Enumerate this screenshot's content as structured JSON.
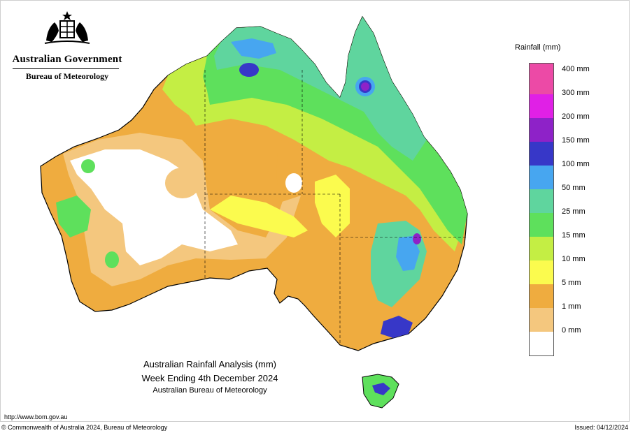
{
  "header": {
    "agency_primary": "Australian Government",
    "agency_secondary": "Bureau of Meteorology",
    "emblem_icon": "coat-of-arms-icon"
  },
  "map": {
    "title_line1": "Australian Rainfall Analysis (mm)",
    "title_line2": "Week Ending 4th December 2024",
    "title_line3": "Australian Bureau of Meteorology",
    "url": "http://www.bom.gov.au"
  },
  "legend": {
    "title": "Rainfall (mm)",
    "bins": [
      {
        "label": "400 mm",
        "color": "#ec4aa6"
      },
      {
        "label": "300 mm",
        "color": "#e020e6"
      },
      {
        "label": "200 mm",
        "color": "#8e22c8"
      },
      {
        "label": "150 mm",
        "color": "#3737c8"
      },
      {
        "label": "100 mm",
        "color": "#47a6f0"
      },
      {
        "label": "50 mm",
        "color": "#5fd59e"
      },
      {
        "label": "25 mm",
        "color": "#5ee05c"
      },
      {
        "label": "15 mm",
        "color": "#c4ee44"
      },
      {
        "label": "10 mm",
        "color": "#fbfb4e"
      },
      {
        "label": "5 mm",
        "color": "#efac3f"
      },
      {
        "label": "1 mm",
        "color": "#f4c77e"
      },
      {
        "label": "0 mm",
        "color": "#ffffff"
      }
    ]
  },
  "footer": {
    "copyright": "© Commonwealth of Australia 2024, Bureau of Meteorology",
    "issued": "Issued: 04/12/2024"
  }
}
